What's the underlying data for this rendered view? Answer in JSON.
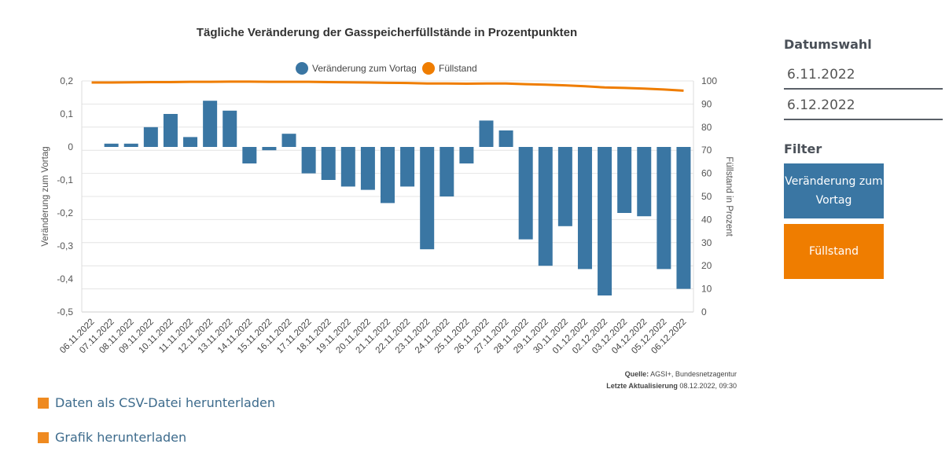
{
  "chart_data": {
    "type": "bar",
    "title": "Tägliche Veränderung der Gasspeicherfüllstände in Prozentpunkten",
    "categories": [
      "06.11.2022",
      "07.11.2022",
      "08.11.2022",
      "09.11.2022",
      "10.11.2022",
      "11.11.2022",
      "12.11.2022",
      "13.11.2022",
      "14.11.2022",
      "15.11.2022",
      "16.11.2022",
      "17.11.2022",
      "18.11.2022",
      "19.11.2022",
      "20.11.2022",
      "21.11.2022",
      "22.11.2022",
      "23.11.2022",
      "24.11.2022",
      "25.11.2022",
      "26.11.2022",
      "27.11.2022",
      "28.11.2022",
      "29.11.2022",
      "30.11.2022",
      "01.12.2022",
      "02.12.2022",
      "03.12.2022",
      "04.12.2022",
      "05.12.2022",
      "06.12.2022"
    ],
    "series": [
      {
        "name": "Veränderung zum Vortag",
        "type": "bar",
        "axis": "left",
        "color": "#3a76a3",
        "values": [
          0,
          0.01,
          0.01,
          0.06,
          0.1,
          0.03,
          0.14,
          0.11,
          -0.05,
          -0.01,
          0.04,
          -0.08,
          -0.1,
          -0.12,
          -0.13,
          -0.17,
          -0.12,
          -0.31,
          -0.15,
          -0.05,
          0.08,
          0.05,
          -0.28,
          -0.36,
          -0.24,
          -0.37,
          -0.45,
          -0.2,
          -0.21,
          -0.37,
          -0.43
        ]
      },
      {
        "name": "Füllstand",
        "type": "line",
        "axis": "right",
        "color": "#ef7d00",
        "values": [
          99.3,
          99.3,
          99.4,
          99.5,
          99.5,
          99.6,
          99.6,
          99.7,
          99.7,
          99.6,
          99.6,
          99.6,
          99.5,
          99.4,
          99.3,
          99.2,
          99.1,
          98.9,
          98.9,
          98.8,
          98.9,
          98.9,
          98.6,
          98.4,
          98.1,
          97.7,
          97.2,
          97.0,
          96.7,
          96.3,
          95.8
        ]
      }
    ],
    "ylabel": "Veränderung zum Vortag",
    "ylabel_right": "Füllstand in Prozent",
    "ylim": [
      -0.5,
      0.2
    ],
    "yticks": [
      "0,2",
      "0,1",
      "0",
      "-0,1",
      "-0,2",
      "-0,3",
      "-0,4",
      "-0,5"
    ],
    "ylim_right": [
      0,
      100
    ],
    "yticks_right": [
      "100",
      "90",
      "80",
      "70",
      "60",
      "50",
      "40",
      "30",
      "20",
      "10",
      "0"
    ],
    "grid": true,
    "legend": "top"
  },
  "source": {
    "label": "Quelle:",
    "value": "AGSI+, Bundesnetzagentur"
  },
  "updated": {
    "label": "Letzte Aktualisierung",
    "value": "08.12.2022, 09:30"
  },
  "links": {
    "csv": "Daten als CSV-Datei herunterladen",
    "graphic": "Grafik herunterladen"
  },
  "sidebar": {
    "date_title": "Datumswahl",
    "from": "6.11.2022",
    "to": "6.12.2022",
    "filter_title": "Filter",
    "filter_change": "Veränderung zum Vortag",
    "filter_level": "Füllstand",
    "colors": {
      "change": "#3a76a3",
      "level": "#ef7d00"
    }
  }
}
